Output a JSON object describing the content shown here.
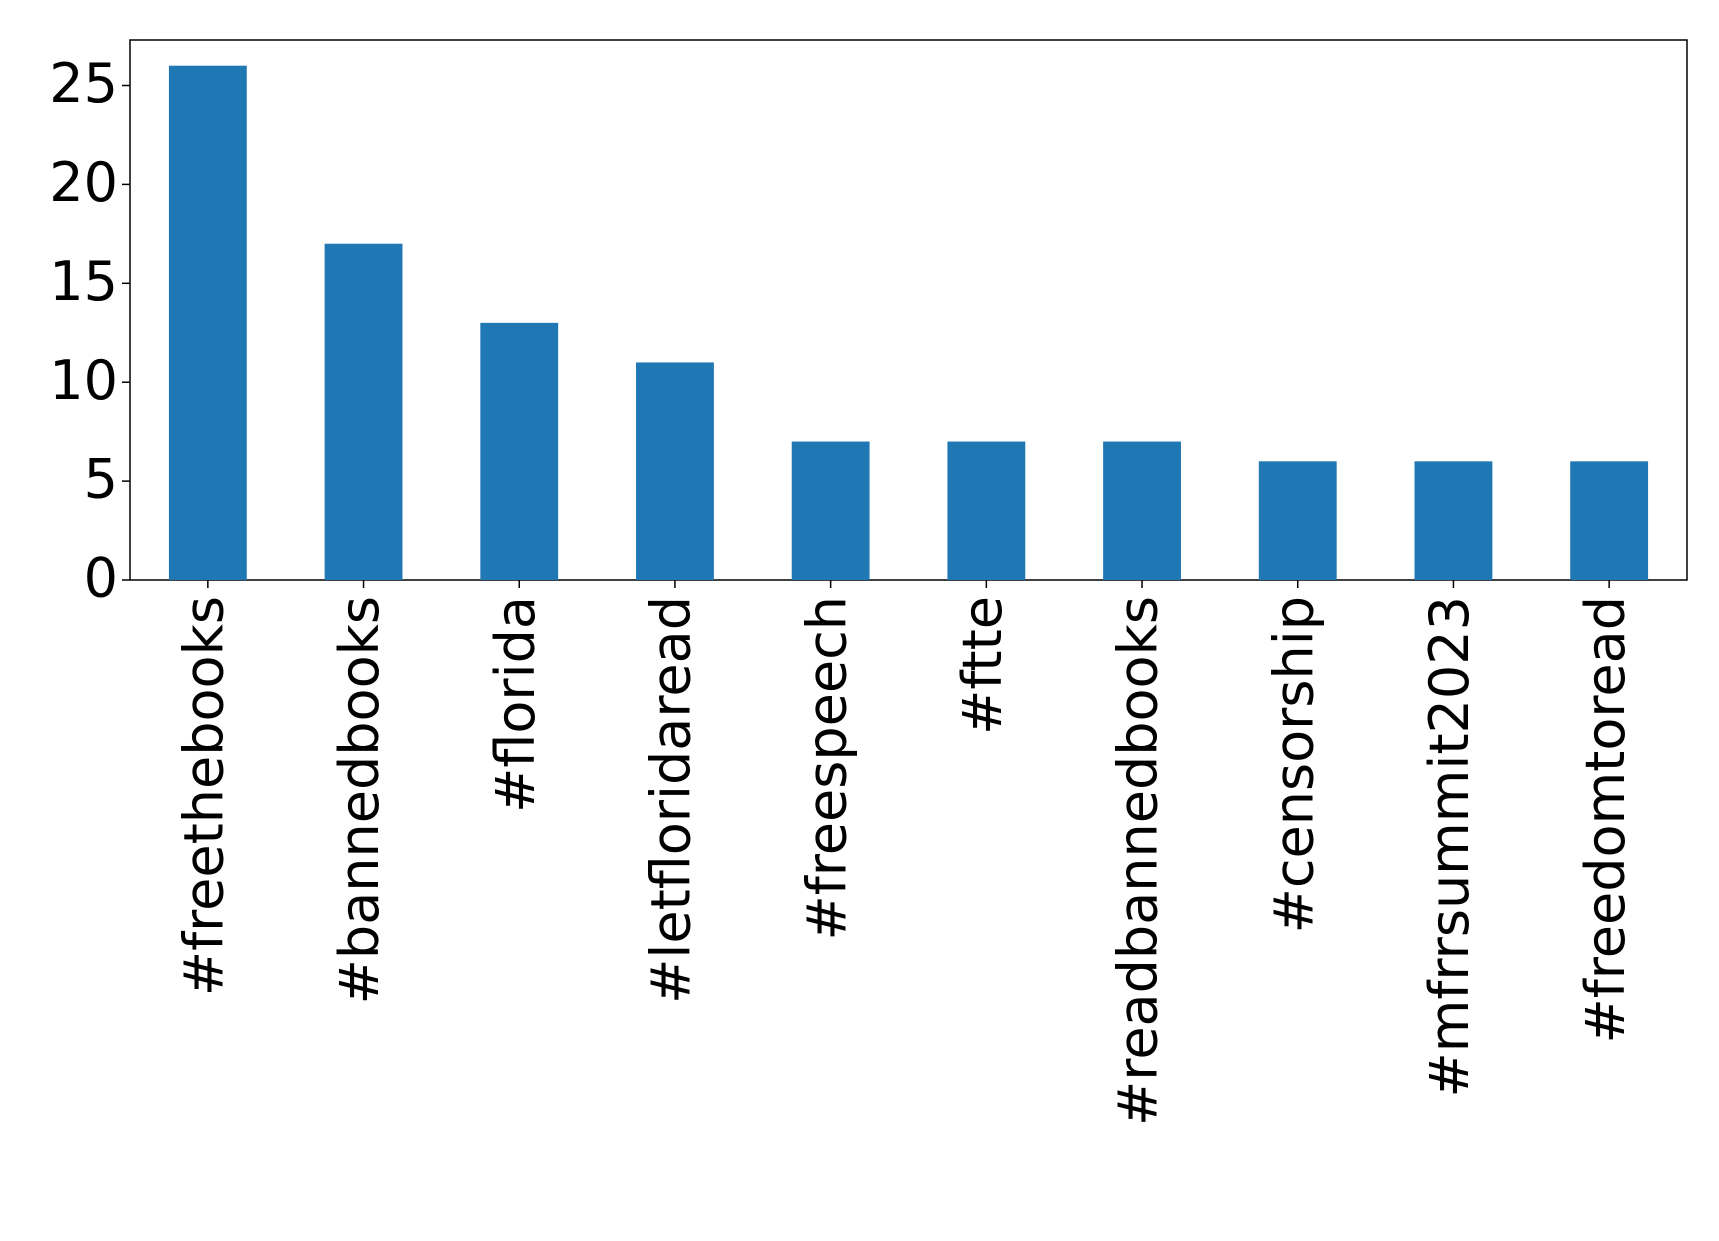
{
  "chart_data": {
    "type": "bar",
    "categories": [
      "#freethebooks",
      "#bannedbooks",
      "#florida",
      "#letfloridaread",
      "#freespeech",
      "#ftte",
      "#readbannedbooks",
      "#censorship",
      "#mfrrsummit2023",
      "#freedomtoread"
    ],
    "values": [
      26,
      17,
      13,
      11,
      7,
      7,
      7,
      6,
      6,
      6
    ],
    "color": "#1f77b4",
    "ylim": [
      0,
      27.3
    ],
    "yticks": [
      0,
      5,
      10,
      15,
      20,
      25
    ],
    "grid": false
  }
}
